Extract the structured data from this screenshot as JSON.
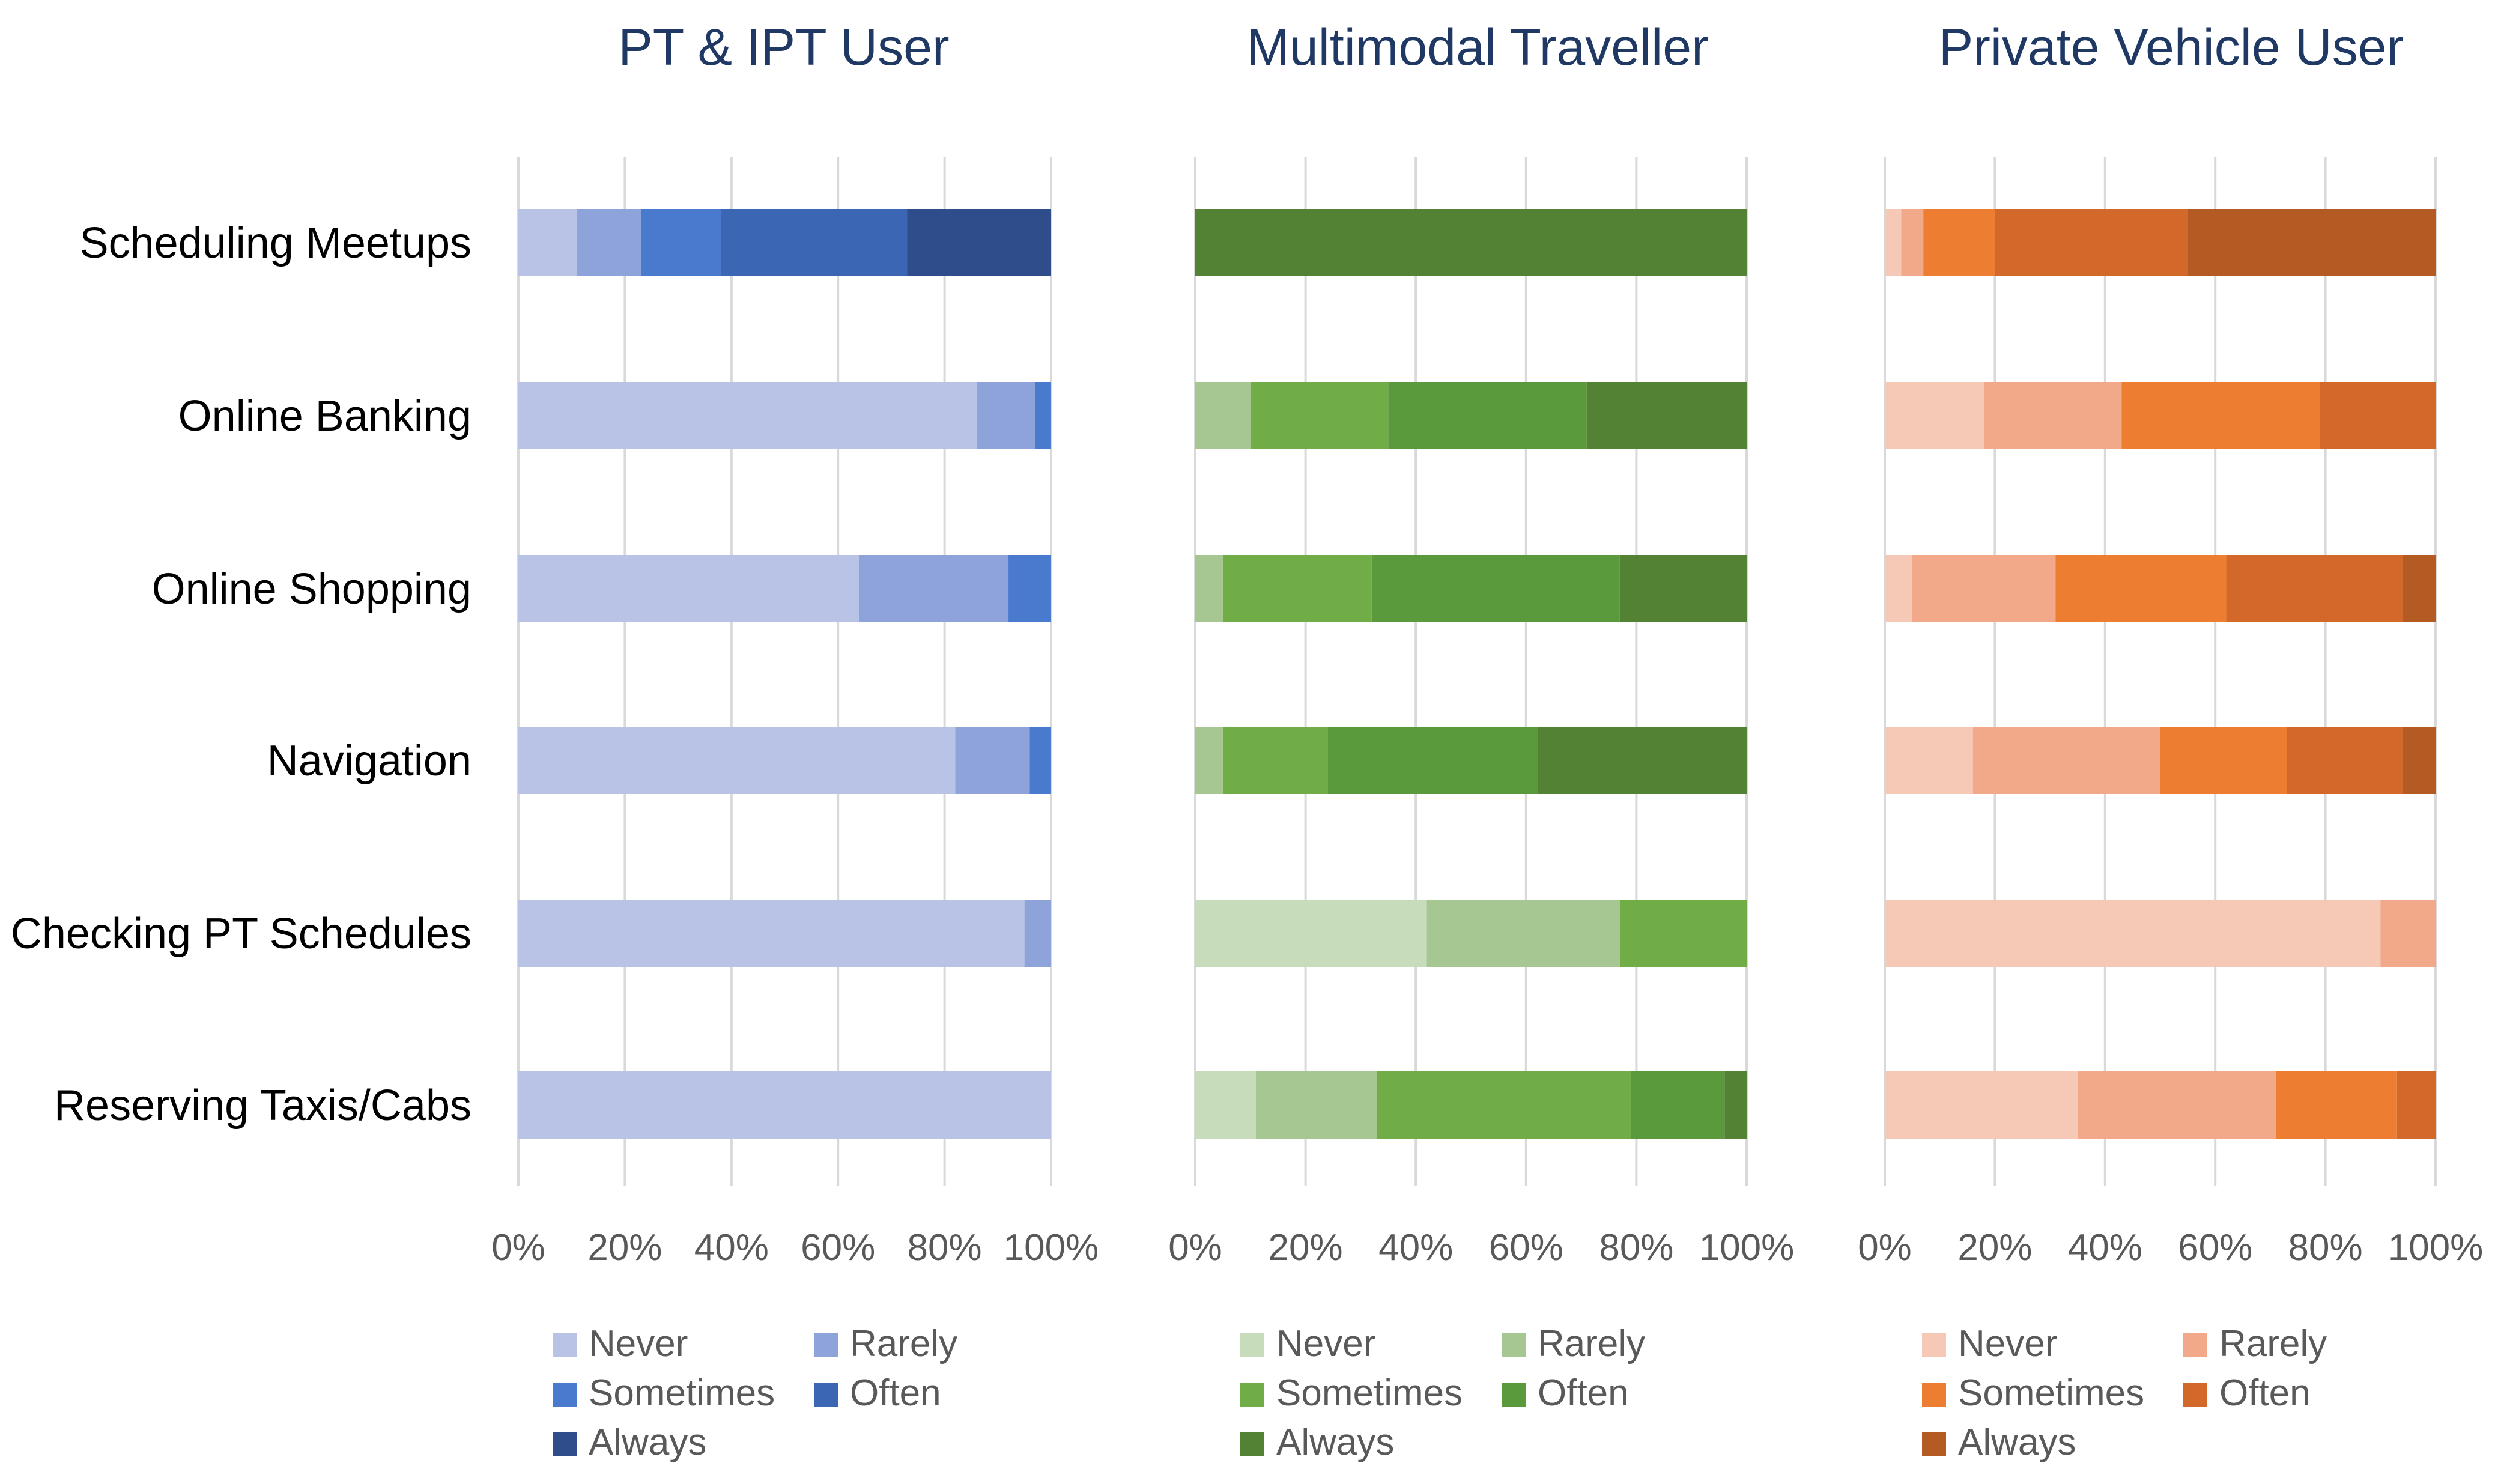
{
  "chart_data": [
    {
      "type": "bar",
      "orientation": "horizontal",
      "stacked": "percent",
      "title": "PT & IPT User",
      "title_color": "#1f3864",
      "categories": [
        "Scheduling Meetups",
        "Online Banking",
        "Online Shopping",
        "Navigation",
        "Checking PT Schedules",
        "Reserving Taxis/Cabs"
      ],
      "xlim": [
        0,
        100
      ],
      "x_ticks": [
        "0%",
        "20%",
        "40%",
        "60%",
        "80%",
        "100%"
      ],
      "grid": true,
      "legend_position": "bottom",
      "series": [
        {
          "name": "Never",
          "color": "#b8c3e5",
          "values": [
            11,
            86,
            64,
            82,
            95,
            100
          ]
        },
        {
          "name": "Rarely",
          "color": "#8ea3d9",
          "values": [
            12,
            11,
            28,
            14,
            5,
            0
          ]
        },
        {
          "name": "Sometimes",
          "color": "#4a7ace",
          "values": [
            15,
            3,
            8,
            4,
            0,
            0
          ]
        },
        {
          "name": "Often",
          "color": "#3a66b3",
          "values": [
            35,
            0,
            0,
            0,
            0,
            0
          ]
        },
        {
          "name": "Always",
          "color": "#2f4d8a",
          "values": [
            27,
            0,
            0,
            0,
            0,
            0
          ]
        }
      ]
    },
    {
      "type": "bar",
      "orientation": "horizontal",
      "stacked": "percent",
      "title": "Multimodal Traveller",
      "title_color": "#1f3864",
      "categories": [
        "Scheduling Meetups",
        "Online Banking",
        "Online Shopping",
        "Navigation",
        "Checking PT Schedules",
        "Reserving Taxis/Cabs"
      ],
      "xlim": [
        0,
        100
      ],
      "x_ticks": [
        "0%",
        "20%",
        "40%",
        "60%",
        "80%",
        "100%"
      ],
      "grid": true,
      "legend_position": "bottom",
      "series": [
        {
          "name": "Never",
          "color": "#c6dcbb",
          "values": [
            0,
            0,
            0,
            0,
            42,
            11
          ]
        },
        {
          "name": "Rarely",
          "color": "#a6c792",
          "values": [
            0,
            10,
            5,
            5,
            35,
            22
          ]
        },
        {
          "name": "Sometimes",
          "color": "#70ad47",
          "values": [
            0,
            25,
            27,
            19,
            23,
            46
          ]
        },
        {
          "name": "Often",
          "color": "#5b9a3c",
          "values": [
            0,
            36,
            45,
            38,
            0,
            17
          ]
        },
        {
          "name": "Always",
          "color": "#548235",
          "values": [
            100,
            29,
            23,
            38,
            0,
            4
          ]
        }
      ]
    },
    {
      "type": "bar",
      "orientation": "horizontal",
      "stacked": "percent",
      "title": "Private Vehicle User",
      "title_color": "#1f3864",
      "categories": [
        "Scheduling Meetups",
        "Online Banking",
        "Online Shopping",
        "Navigation",
        "Checking PT Schedules",
        "Reserving Taxis/Cabs"
      ],
      "xlim": [
        0,
        100
      ],
      "x_ticks": [
        "0%",
        "20%",
        "40%",
        "60%",
        "80%",
        "100%"
      ],
      "grid": true,
      "legend_position": "bottom",
      "series": [
        {
          "name": "Never",
          "color": "#f6c9b7",
          "values": [
            3,
            18,
            5,
            16,
            90,
            35
          ]
        },
        {
          "name": "Rarely",
          "color": "#f2a98a",
          "values": [
            4,
            25,
            26,
            34,
            10,
            36
          ]
        },
        {
          "name": "Sometimes",
          "color": "#ed7d31",
          "values": [
            13,
            36,
            31,
            23,
            0,
            22
          ]
        },
        {
          "name": "Often",
          "color": "#d2692a",
          "values": [
            35,
            21,
            32,
            21,
            0,
            7
          ]
        },
        {
          "name": "Always",
          "color": "#b45a23",
          "values": [
            45,
            0,
            6,
            6,
            0,
            0
          ]
        }
      ]
    }
  ]
}
